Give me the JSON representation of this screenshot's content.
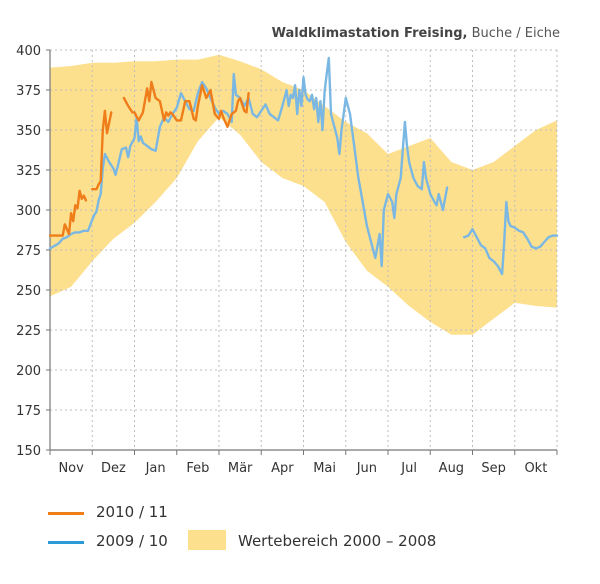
{
  "title": "Waldklimastation Freising,",
  "subtitle": "Buche / Eiche",
  "colors": {
    "band": "#fde08e",
    "series_2010": "#ee7d1a",
    "series_2009": "#7ab8e3",
    "grid": "#bdbdbd",
    "axis": "#777777"
  },
  "legend": {
    "series_2010_label": "2010 / 11",
    "series_2009_label": "2009 / 10",
    "band_label": "Wertebereich 2000 – 2008"
  },
  "chart_data": {
    "type": "line",
    "title": "Waldklimastation Freising, Buche / Eiche",
    "xlabel": "",
    "ylabel": "",
    "ylim": [
      150,
      400
    ],
    "yticks": [
      150,
      175,
      200,
      225,
      250,
      275,
      300,
      325,
      350,
      375,
      400
    ],
    "month_labels": [
      "Nov",
      "Dez",
      "Jan",
      "Feb",
      "Mär",
      "Apr",
      "Mai",
      "Jun",
      "Jul",
      "Aug",
      "Sep",
      "Okt"
    ],
    "x_unit": "month index (0 = start of Nov, 12 = end of Okt)",
    "grid": true,
    "legend_position": "bottom",
    "band": {
      "name": "Wertebereich 2000 – 2008",
      "x": [
        0.0,
        0.5,
        1.0,
        1.5,
        2.0,
        2.5,
        3.0,
        3.5,
        4.0,
        4.5,
        5.0,
        5.5,
        6.0,
        6.5,
        7.0,
        7.5,
        8.0,
        8.5,
        9.0,
        9.5,
        10.0,
        10.5,
        11.0,
        11.5,
        12.0
      ],
      "upper": [
        389,
        390,
        392,
        392,
        393,
        393,
        394,
        394,
        397,
        393,
        388,
        380,
        375,
        365,
        355,
        348,
        335,
        340,
        345,
        330,
        325,
        330,
        340,
        350,
        356
      ],
      "lower": [
        246,
        252,
        268,
        282,
        292,
        305,
        320,
        343,
        358,
        347,
        330,
        320,
        315,
        305,
        280,
        262,
        252,
        240,
        230,
        222,
        222,
        232,
        242,
        240,
        239
      ]
    },
    "series": [
      {
        "name": "2010 / 11",
        "segments": [
          {
            "x": [
              0.0,
              0.15,
              0.3,
              0.35,
              0.45,
              0.5,
              0.55,
              0.6,
              0.65,
              0.7,
              0.75,
              0.8,
              0.85
            ],
            "y": [
              284,
              284,
              284,
              291,
              285,
              298,
              293,
              303,
              301,
              312,
              307,
              309,
              306
            ]
          },
          {
            "x": [
              1.0,
              1.1,
              1.15,
              1.2,
              1.25,
              1.3,
              1.35,
              1.45
            ],
            "y": [
              313,
              313,
              316,
              318,
              350,
              362,
              348,
              361
            ]
          },
          {
            "x": [
              1.75,
              1.85,
              1.95,
              2.0,
              2.1,
              2.2,
              2.3,
              2.35,
              2.4,
              2.5,
              2.6,
              2.7,
              2.75,
              2.8,
              2.85,
              2.9,
              2.95,
              3.0,
              3.1,
              3.2,
              3.3,
              3.35,
              3.4,
              3.45,
              3.5,
              3.6,
              3.7,
              3.8,
              3.9,
              4.0,
              4.05,
              4.1,
              4.2,
              4.3,
              4.4,
              4.45,
              4.5,
              4.6,
              4.65,
              4.7
            ],
            "y": [
              370,
              365,
              361,
              361,
              356,
              361,
              376,
              368,
              380,
              370,
              368,
              356,
              361,
              359,
              361,
              360,
              358,
              356,
              356,
              368,
              368,
              363,
              357,
              356,
              365,
              378,
              370,
              375,
              360,
              357,
              362,
              358,
              352,
              360,
              362,
              368,
              370,
              362,
              361,
              373
            ]
          }
        ]
      },
      {
        "name": "2009 / 10",
        "segments": [
          {
            "x": [
              0.0,
              0.2,
              0.3,
              0.4,
              0.5,
              0.6,
              0.7,
              0.8,
              0.9,
              1.0,
              1.05,
              1.1,
              1.15,
              1.2,
              1.25,
              1.3,
              1.4,
              1.5,
              1.55,
              1.6,
              1.7,
              1.8,
              1.85,
              1.9,
              2.0,
              2.05,
              2.1,
              2.15,
              2.2,
              2.3,
              2.4,
              2.5,
              2.6,
              2.7,
              2.8,
              2.9,
              3.0,
              3.1,
              3.2,
              3.3,
              3.4,
              3.5,
              3.6,
              3.7,
              3.8,
              3.9,
              4.0,
              4.1,
              4.2,
              4.3,
              4.35,
              4.4,
              4.5,
              4.6,
              4.7,
              4.8,
              4.9,
              5.0,
              5.1,
              5.2,
              5.3,
              5.4,
              5.5,
              5.6,
              5.65,
              5.7,
              5.75,
              5.8,
              5.85,
              5.9,
              5.95,
              6.0,
              6.05,
              6.1,
              6.15,
              6.2,
              6.25,
              6.3,
              6.35,
              6.4,
              6.45,
              6.5,
              6.55,
              6.6,
              6.65,
              6.7,
              6.8,
              6.85,
              6.9,
              7.0,
              7.1,
              7.2,
              7.3,
              7.4,
              7.5,
              7.6,
              7.7,
              7.8,
              7.85,
              7.9,
              8.0,
              8.1,
              8.15,
              8.2,
              8.3,
              8.4,
              8.45,
              8.5,
              8.6,
              8.7,
              8.8,
              8.85,
              8.9,
              9.0,
              9.1,
              9.15,
              9.2,
              9.3,
              9.4
            ],
            "y": [
              276,
              279,
              282,
              283,
              285,
              286,
              286,
              287,
              287,
              294,
              297,
              299,
              306,
              310,
              326,
              335,
              330,
              326,
              322,
              327,
              338,
              339,
              333,
              340,
              345,
              358,
              343,
              346,
              342,
              340,
              338,
              337,
              352,
              358,
              355,
              360,
              364,
              373,
              368,
              363,
              362,
              373,
              380,
              376,
              370,
              364,
              360,
              362,
              360,
              355,
              385,
              372,
              370,
              365,
              370,
              360,
              358,
              362,
              366,
              360,
              358,
              356,
              365,
              375,
              365,
              372,
              370,
              378,
              360,
              375,
              365,
              383,
              372,
              369,
              368,
              372,
              363,
              370,
              355,
              368,
              350,
              374,
              385,
              395,
              360,
              355,
              345,
              335,
              350,
              370,
              360,
              340,
              320,
              305,
              290,
              280,
              270,
              285,
              265,
              300,
              310,
              305,
              295,
              310,
              320,
              355,
              340,
              330,
              320,
              315,
              313,
              330,
              320,
              310,
              305,
              303,
              310,
              300,
              314
            ]
          },
          {
            "x": [
              9.8,
              9.9,
              10.0,
              10.1,
              10.2,
              10.3,
              10.4,
              10.5,
              10.6,
              10.7,
              10.75,
              10.8,
              10.85,
              10.9,
              11.0,
              11.1,
              11.2,
              11.3,
              11.4,
              11.5,
              11.6,
              11.7,
              11.8,
              11.9,
              12.0
            ],
            "y": [
              283,
              284,
              288,
              283,
              278,
              276,
              270,
              268,
              265,
              260,
              280,
              305,
              293,
              290,
              289,
              287,
              286,
              282,
              277,
              276,
              277,
              280,
              283,
              284,
              284
            ]
          }
        ]
      }
    ]
  }
}
